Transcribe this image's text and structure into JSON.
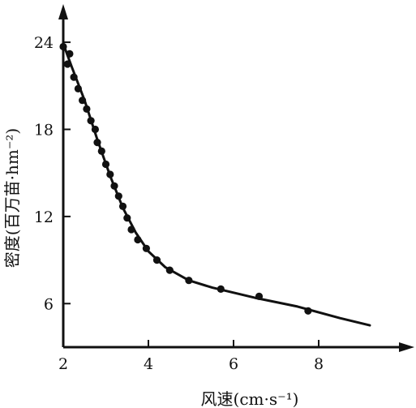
{
  "chart_data": {
    "type": "scatter",
    "xlabel": "风速(cm·s⁻¹)",
    "ylabel": "密度(百万苗·hm⁻²)",
    "xlim": [
      2,
      10.2
    ],
    "ylim": [
      3,
      26.5
    ],
    "x_ticks": [
      "2",
      "4",
      "6",
      "8"
    ],
    "x_tick_values": [
      2,
      4,
      6,
      8
    ],
    "y_ticks": [
      "6",
      "12",
      "18",
      "24"
    ],
    "y_tick_values": [
      6,
      12,
      18,
      24
    ],
    "grid": false,
    "series": [
      {
        "marker": "point",
        "points": [
          [
            2.0,
            23.7
          ],
          [
            2.1,
            22.5
          ],
          [
            2.15,
            23.2
          ],
          [
            2.25,
            21.6
          ],
          [
            2.35,
            20.8
          ],
          [
            2.45,
            20.0
          ],
          [
            2.55,
            19.4
          ],
          [
            2.65,
            18.6
          ],
          [
            2.75,
            18.0
          ],
          [
            2.8,
            17.1
          ],
          [
            2.9,
            16.5
          ],
          [
            3.0,
            15.6
          ],
          [
            3.1,
            14.9
          ],
          [
            3.2,
            14.1
          ],
          [
            3.3,
            13.4
          ],
          [
            3.4,
            12.7
          ],
          [
            3.5,
            11.9
          ],
          [
            3.6,
            11.1
          ],
          [
            3.75,
            10.4
          ],
          [
            3.95,
            9.8
          ],
          [
            4.2,
            9.0
          ],
          [
            4.5,
            8.3
          ],
          [
            4.95,
            7.6
          ],
          [
            5.7,
            7.0
          ],
          [
            6.6,
            6.5
          ],
          [
            7.75,
            5.5
          ]
        ]
      },
      {
        "marker": "line",
        "points": [
          [
            2.0,
            23.9
          ],
          [
            2.2,
            22.3
          ],
          [
            2.5,
            20.0
          ],
          [
            2.8,
            17.3
          ],
          [
            3.1,
            14.8
          ],
          [
            3.4,
            12.6
          ],
          [
            3.7,
            10.9
          ],
          [
            4.0,
            9.6
          ],
          [
            4.4,
            8.5
          ],
          [
            4.95,
            7.6
          ],
          [
            5.5,
            7.1
          ],
          [
            6.5,
            6.4
          ],
          [
            7.5,
            5.8
          ],
          [
            8.5,
            5.0
          ],
          [
            9.2,
            4.5
          ]
        ]
      }
    ]
  }
}
